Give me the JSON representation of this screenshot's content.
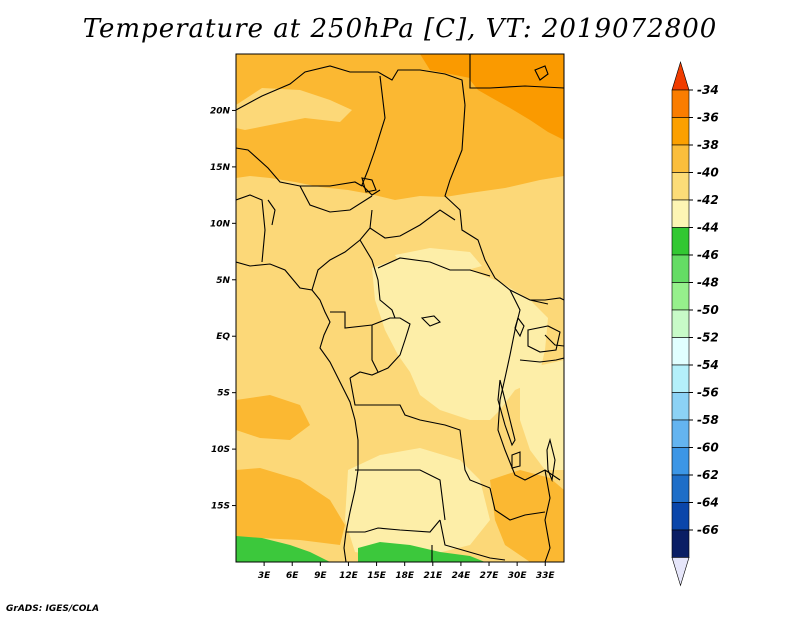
{
  "title": "Temperature at 250hPa [C], VT: 2019072800",
  "credit": "GrADS: IGES/COLA",
  "map": {
    "lon_range": [
      0,
      35
    ],
    "lat_range": [
      -20,
      25
    ],
    "x_tick_labels": [
      {
        "lon": 3,
        "label": "3E"
      },
      {
        "lon": 6,
        "label": "6E"
      },
      {
        "lon": 9,
        "label": "9E"
      },
      {
        "lon": 12,
        "label": "12E"
      },
      {
        "lon": 15,
        "label": "15E"
      },
      {
        "lon": 18,
        "label": "18E"
      },
      {
        "lon": 21,
        "label": "21E"
      },
      {
        "lon": 24,
        "label": "24E"
      },
      {
        "lon": 27,
        "label": "27E"
      },
      {
        "lon": 30,
        "label": "30E"
      },
      {
        "lon": 33,
        "label": "33E"
      }
    ],
    "y_tick_labels": [
      {
        "lat": 20,
        "label": "20N"
      },
      {
        "lat": 15,
        "label": "15N"
      },
      {
        "lat": 10,
        "label": "10N"
      },
      {
        "lat": 5,
        "label": "5N"
      },
      {
        "lat": 0,
        "label": "EQ"
      },
      {
        "lat": -5,
        "label": "5S"
      },
      {
        "lat": -10,
        "label": "10S"
      },
      {
        "lat": -15,
        "label": "15S"
      }
    ]
  },
  "colorbar": {
    "levels": [
      "-34",
      "-36",
      "-38",
      "-40",
      "-42",
      "-44",
      "-46",
      "-48",
      "-50",
      "-52",
      "-54",
      "-56",
      "-58",
      "-60",
      "-62",
      "-64",
      "-66"
    ],
    "colors": [
      "#f03c00",
      "#fa7d00",
      "#fca000",
      "#fbbe3c",
      "#fcdc78",
      "#fdf5b4",
      "#32c832",
      "#64dc64",
      "#96f08c",
      "#c8fac8",
      "#e1ffff",
      "#b4f0fa",
      "#8cd2f5",
      "#64b4f0",
      "#3c96e6",
      "#1e6ec8",
      "#0a46aa",
      "#0a1e64",
      "#e6e6fa"
    ]
  },
  "palette": {
    "c36": "#fa9a00",
    "c38": "#fbb832",
    "c40": "#fcd878",
    "c42": "#fdeea8",
    "c44": "#3cc83c"
  }
}
